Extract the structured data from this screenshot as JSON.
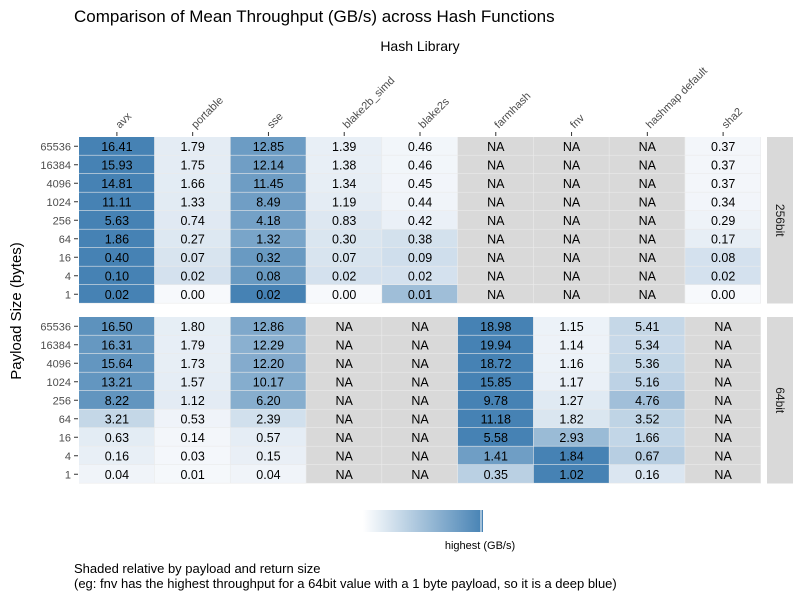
{
  "chart_data": {
    "type": "heatmap",
    "title": "Comparison of Mean Throughput (GB/s) across Hash Functions",
    "xlabel": "Hash Library",
    "ylabel": "Payload Size (bytes)",
    "columns": [
      "avx",
      "portable",
      "sse",
      "blake2b_simd",
      "blake2s",
      "farmhash",
      "fnv",
      "hashmap default",
      "sha2"
    ],
    "rows": [
      "65536",
      "16384",
      "4096",
      "1024",
      "256",
      "64",
      "16",
      "4",
      "1"
    ],
    "na_label": "NA",
    "panels": [
      {
        "name": "256bit",
        "values": [
          [
            16.41,
            1.79,
            12.85,
            1.39,
            0.46,
            null,
            null,
            null,
            0.37
          ],
          [
            15.93,
            1.75,
            12.14,
            1.38,
            0.46,
            null,
            null,
            null,
            0.37
          ],
          [
            14.81,
            1.66,
            11.45,
            1.34,
            0.45,
            null,
            null,
            null,
            0.37
          ],
          [
            11.11,
            1.33,
            8.49,
            1.19,
            0.44,
            null,
            null,
            null,
            0.34
          ],
          [
            5.63,
            0.74,
            4.18,
            0.83,
            0.42,
            null,
            null,
            null,
            0.29
          ],
          [
            1.86,
            0.27,
            1.32,
            0.3,
            0.38,
            null,
            null,
            null,
            0.17
          ],
          [
            0.4,
            0.07,
            0.32,
            0.07,
            0.09,
            null,
            null,
            null,
            0.08
          ],
          [
            0.1,
            0.02,
            0.08,
            0.02,
            0.02,
            null,
            null,
            null,
            0.02
          ],
          [
            0.02,
            0.0,
            0.02,
            0.0,
            0.01,
            null,
            null,
            null,
            0.0
          ]
        ]
      },
      {
        "name": "64bit",
        "values": [
          [
            16.5,
            1.8,
            12.86,
            null,
            null,
            18.98,
            1.15,
            5.41,
            null
          ],
          [
            16.31,
            1.79,
            12.29,
            null,
            null,
            19.94,
            1.14,
            5.34,
            null
          ],
          [
            15.64,
            1.73,
            12.2,
            null,
            null,
            18.72,
            1.16,
            5.36,
            null
          ],
          [
            13.21,
            1.57,
            10.17,
            null,
            null,
            15.85,
            1.17,
            5.16,
            null
          ],
          [
            8.22,
            1.12,
            6.2,
            null,
            null,
            9.78,
            1.27,
            4.76,
            null
          ],
          [
            3.21,
            0.53,
            2.39,
            null,
            null,
            11.18,
            1.82,
            3.52,
            null
          ],
          [
            0.63,
            0.14,
            0.57,
            null,
            null,
            5.58,
            2.93,
            1.66,
            null
          ],
          [
            0.16,
            0.03,
            0.15,
            null,
            null,
            1.41,
            1.84,
            0.67,
            null
          ],
          [
            0.04,
            0.01,
            0.04,
            null,
            null,
            0.35,
            1.02,
            0.16,
            null
          ]
        ]
      }
    ],
    "legend": {
      "label": "highest (GB/s)",
      "position": "bottom"
    },
    "colors": {
      "low": "#f7f9fc",
      "high": "#4682b4",
      "na": "#d9d9d9",
      "strip": "#d9d9d9",
      "panel_bg": "#ebebeb"
    },
    "caption_lines": [
      "Shaded relative by payload and return size",
      "(eg: fnv has the highest throughput for a 64bit value with a 1 byte payload, so it is a deep blue)"
    ]
  }
}
